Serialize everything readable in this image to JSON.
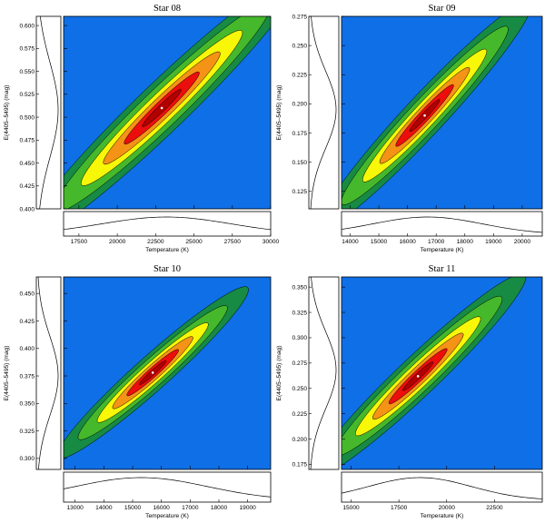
{
  "chart_data": [
    {
      "type": "contour",
      "title": "Star 08",
      "xlabel": "Temperature (K)",
      "ylabel": "E(4405–5495) (mag)",
      "xlim": [
        16500,
        30000
      ],
      "ylim": [
        0.4,
        0.61
      ],
      "x_ticks": [
        "17500",
        "20000",
        "22500",
        "25000",
        "27500",
        "30000"
      ],
      "y_ticks": [
        "0.400",
        "0.425",
        "0.450",
        "0.475",
        "0.500",
        "0.525",
        "0.550",
        "0.575",
        "0.600"
      ],
      "best_fit": {
        "x": 22900,
        "y": 0.51
      },
      "ellipse": {
        "semi_major_x": 9000,
        "semi_major_y": 0.145,
        "semi_minor_x": 1150,
        "semi_minor_y": -0.0185
      },
      "levels": [
        1.0,
        0.78,
        0.58,
        0.42,
        0.27,
        0.14
      ],
      "marginal_x": {
        "center": 23200,
        "sigma": 4200
      },
      "marginal_y": {
        "center": 0.508,
        "sigma": 0.052
      }
    },
    {
      "type": "contour",
      "title": "Star 09",
      "xlabel": "Temperature (K)",
      "ylabel": "E(4405–5495) (mag)",
      "xlim": [
        13700,
        20700
      ],
      "ylim": [
        0.11,
        0.275
      ],
      "x_ticks": [
        "14000",
        "15000",
        "16000",
        "17000",
        "18000",
        "19000",
        "20000"
      ],
      "y_ticks": [
        "0.125",
        "0.150",
        "0.175",
        "0.200",
        "0.225",
        "0.250",
        "0.275"
      ],
      "best_fit": {
        "x": 16600,
        "y": 0.19
      },
      "ellipse": {
        "semi_major_x": 3700,
        "semi_major_y": 0.0975,
        "semi_minor_x": 500,
        "semi_minor_y": -0.0118
      },
      "levels": [
        1.0,
        0.78,
        0.58,
        0.42,
        0.27,
        0.14
      ],
      "marginal_x": {
        "center": 16700,
        "sigma": 1900
      },
      "marginal_y": {
        "center": 0.195,
        "sigma": 0.033
      }
    },
    {
      "type": "contour",
      "title": "Star 10",
      "xlabel": "Temperature (K)",
      "ylabel": "E(4405–5495) (mag)",
      "xlim": [
        12600,
        19800
      ],
      "ylim": [
        0.29,
        0.465
      ],
      "x_ticks": [
        "13000",
        "14000",
        "15000",
        "16000",
        "17000",
        "18000",
        "19000"
      ],
      "y_ticks": [
        "0.300",
        "0.325",
        "0.350",
        "0.375",
        "0.400",
        "0.425",
        "0.450"
      ],
      "best_fit": {
        "x": 15700,
        "y": 0.378
      },
      "ellipse": {
        "semi_major_x": 3300,
        "semi_major_y": 0.0775,
        "semi_minor_x": 440,
        "semi_minor_y": -0.0105
      },
      "levels": [
        1.0,
        0.78,
        0.58,
        0.42,
        0.27,
        0.14
      ],
      "marginal_x": {
        "center": 15300,
        "sigma": 2300
      },
      "marginal_y": {
        "center": 0.375,
        "sigma": 0.036
      }
    },
    {
      "type": "contour",
      "title": "Star 11",
      "xlabel": "Temperature (K)",
      "ylabel": "E(4405–5495) (mag)",
      "xlim": [
        14500,
        25000
      ],
      "ylim": [
        0.17,
        0.36
      ],
      "x_ticks": [
        "15000",
        "17500",
        "20000",
        "22500"
      ],
      "y_ticks": [
        "0.175",
        "0.200",
        "0.225",
        "0.250",
        "0.275",
        "0.300",
        "0.325",
        "0.350"
      ],
      "best_fit": {
        "x": 18500,
        "y": 0.262
      },
      "ellipse": {
        "semi_major_x": 5600,
        "semi_major_y": 0.1005,
        "semi_minor_x": 740,
        "semi_minor_y": -0.0135
      },
      "levels": [
        1.0,
        0.78,
        0.58,
        0.42,
        0.27,
        0.14
      ],
      "marginal_x": {
        "center": 18600,
        "sigma": 2700
      },
      "marginal_y": {
        "center": 0.268,
        "sigma": 0.038
      }
    }
  ],
  "colors": {
    "background": "#0f6fe6",
    "levels": [
      "#178a43",
      "#45b82b",
      "#f7f707",
      "#f49316",
      "#ec0d0d",
      "#b10000"
    ],
    "marker": "#ffffff",
    "line": "#000000"
  }
}
